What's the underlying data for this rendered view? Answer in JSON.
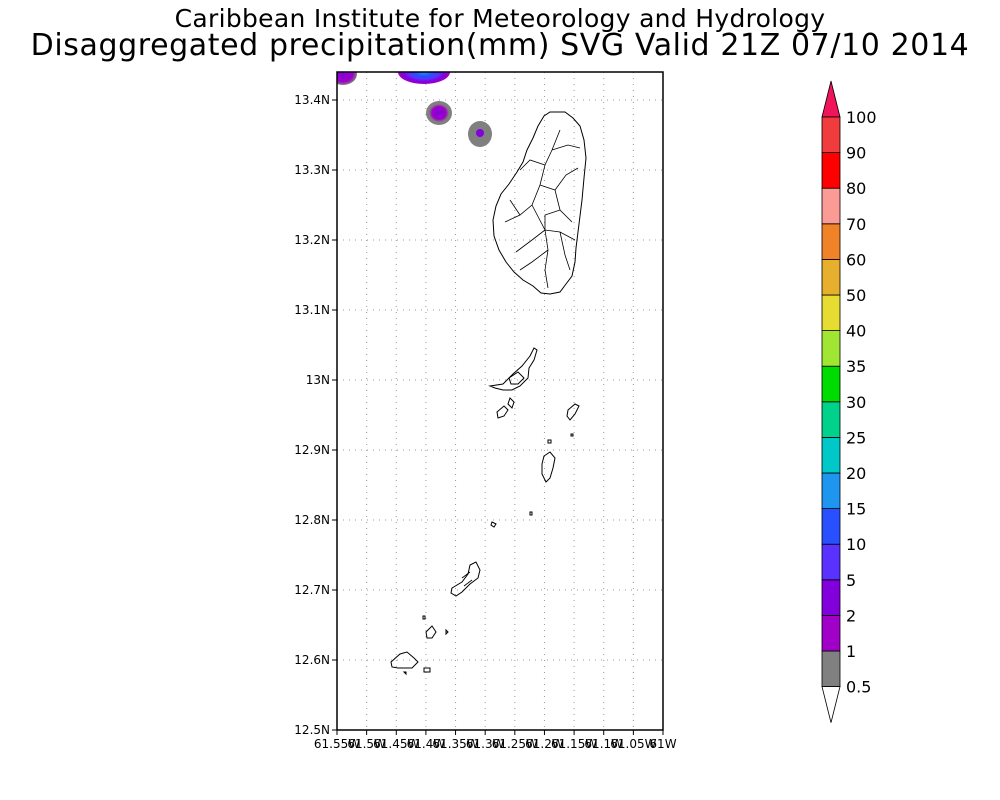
{
  "header": {
    "line1": "Caribbean Institute for Meteorology and Hydrology",
    "line2": "Disaggregated precipitation(mm) SVG Valid 21Z 07/10 2014"
  },
  "map": {
    "region": "St. Vincent and the Grenadines",
    "lat_range": [
      12.5,
      13.44
    ],
    "lon_range": [
      -61.55,
      -61.0
    ],
    "grid": true,
    "lat_tick_labels": [
      "12.5N",
      "12.6N",
      "12.7N",
      "12.8N",
      "12.9N",
      "13N",
      "13.1N",
      "13.2N",
      "13.3N",
      "13.4N"
    ],
    "lon_tick_labels": [
      "61.55W",
      "61.5W",
      "61.45W",
      "61.4W",
      "61.35W",
      "61.3W",
      "61.25W",
      "61.2W",
      "61.15W",
      "61.1W",
      "61.05W",
      "61W"
    ]
  },
  "precip_cells": [
    {
      "lon": -61.545,
      "lat": 13.43,
      "max_class": "2"
    },
    {
      "lon": -61.41,
      "lat": 13.435,
      "max_class": "15"
    },
    {
      "lon": -61.395,
      "lat": 13.38,
      "max_class": "2"
    },
    {
      "lon": -61.3,
      "lat": 13.35,
      "max_class": "1"
    }
  ],
  "colorbar": {
    "labels": [
      "0.5",
      "1",
      "2",
      "5",
      "10",
      "15",
      "20",
      "25",
      "30",
      "35",
      "40",
      "50",
      "60",
      "70",
      "80",
      "90",
      "100"
    ],
    "colors": [
      "#808080",
      "#a000c8",
      "#8200dc",
      "#5a32ff",
      "#2850ff",
      "#1e96f0",
      "#00c8c8",
      "#00d28c",
      "#00dc00",
      "#a0e632",
      "#e6dc32",
      "#e6af2d",
      "#f08228",
      "#fa9b96",
      "#ff0000",
      "#f03c3c",
      "#f0145a"
    ],
    "top_arrow_color": "#f0145a",
    "bottom_arrow_color": "#ffffff"
  }
}
